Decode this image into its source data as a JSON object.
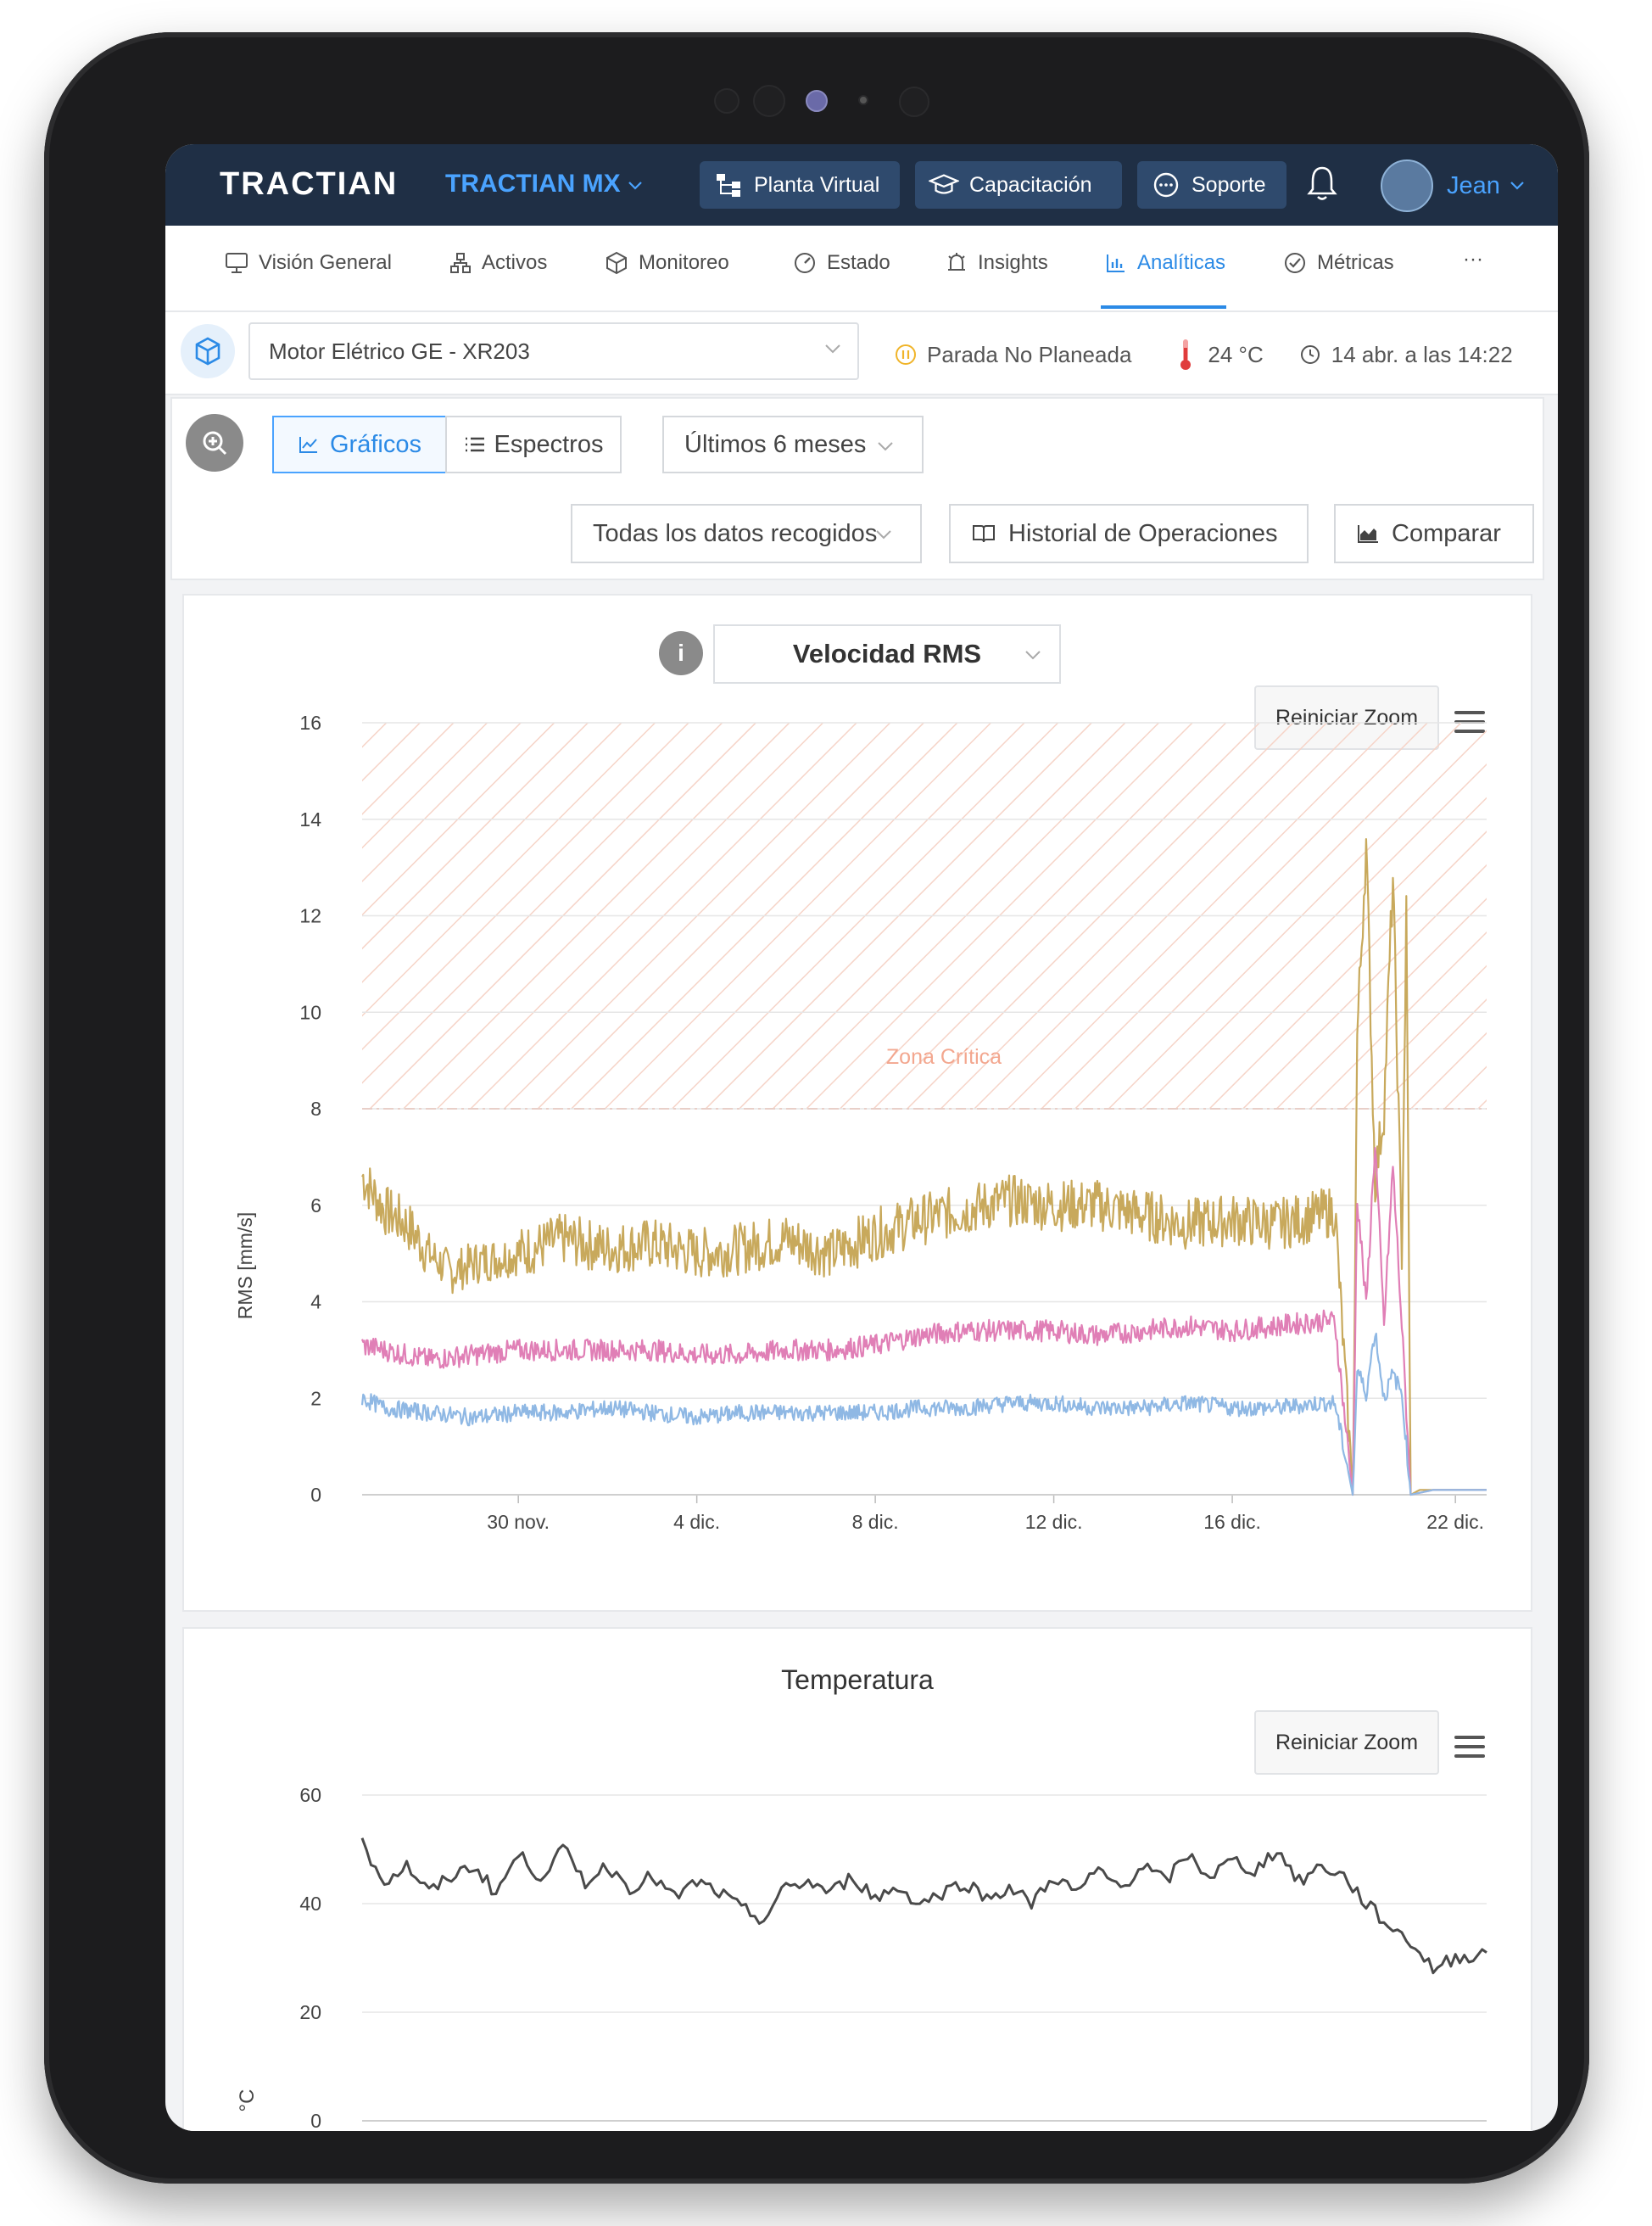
{
  "header": {
    "logo": "TRACTIAN",
    "company": "TRACTIAN MX",
    "buttons": [
      {
        "label": "Planta Virtual",
        "icon": "sitemap-icon"
      },
      {
        "label": "Capacitación",
        "icon": "graduation-cap-icon"
      },
      {
        "label": "Soporte",
        "icon": "chat-icon"
      }
    ],
    "user": "Jean"
  },
  "nav": {
    "items": [
      {
        "label": "Visión General",
        "icon": "monitor-icon"
      },
      {
        "label": "Activos",
        "icon": "hierarchy-icon"
      },
      {
        "label": "Monitoreo",
        "icon": "box-icon"
      },
      {
        "label": "Estado",
        "icon": "gauge-icon"
      },
      {
        "label": "Insights",
        "icon": "alarm-icon"
      },
      {
        "label": "Analíticas",
        "icon": "bar-chart-icon"
      },
      {
        "label": "Métricas",
        "icon": "check-circle-icon"
      },
      {
        "label": "···",
        "icon": "more-icon"
      }
    ],
    "active": "Analíticas"
  },
  "asset": {
    "selected": "Motor Elétrico GE - XR203",
    "status": "Parada No Planeada",
    "temperature": "24 °C",
    "last_update": "14 abr. a las 14:22"
  },
  "filters": {
    "view_tabs": [
      "Gráficos",
      "Espectros"
    ],
    "active_tab": "Gráficos",
    "period": "Últimos 6 meses",
    "data_scope": "Todas los datos recogidos",
    "history_button": "Historial de Operaciones",
    "compare_button": "Comparar"
  },
  "colors": {
    "accent": "#2b8ae6",
    "topbar": "#1f2f45",
    "critical": "#f08a6c",
    "series_1": "#c8a95c",
    "series_2": "#e07fb6",
    "series_3": "#8fb8e4",
    "temperature": "#4a4a4a"
  },
  "chart_rms": {
    "selector": "Velocidad RMS",
    "reset_zoom": "Reiniciar Zoom",
    "critical_label": "Zona Crítica"
  },
  "chart_temp": {
    "title": "Temperatura",
    "reset_zoom": "Reiniciar Zoom"
  },
  "chart_data": [
    {
      "type": "line",
      "ylabel": "RMS [mm/s]",
      "ylim": [
        0,
        16
      ],
      "yticks": [
        0,
        2,
        4,
        6,
        8,
        10,
        12,
        14,
        16
      ],
      "xlim": [
        -3.5,
        21.7
      ],
      "xticks": [
        {
          "x": 0,
          "label": "30 nov."
        },
        {
          "x": 4,
          "label": "4 dic."
        },
        {
          "x": 8,
          "label": "8 dic."
        },
        {
          "x": 12,
          "label": "12 dic."
        },
        {
          "x": 16,
          "label": "16 dic."
        },
        {
          "x": 21,
          "label": "22 dic."
        }
      ],
      "critical_threshold": 8,
      "grid": true,
      "series": [
        {
          "color": "#c8a95c",
          "x": [
            -3.5,
            -3.0,
            -2.5,
            -2.0,
            -1.5,
            -1.0,
            0,
            1,
            2,
            3,
            4,
            5,
            6,
            7,
            8,
            9,
            10,
            11,
            12,
            13,
            14,
            15,
            16,
            17,
            18,
            18.3,
            18.7,
            18.8,
            19.0,
            19.2,
            19.4,
            19.6,
            19.8,
            19.9,
            20.0,
            20.2,
            20.5,
            21.0,
            21.7
          ],
          "values": [
            6.6,
            5.9,
            5.6,
            5.0,
            4.6,
            4.8,
            5.0,
            5.3,
            5.1,
            5.2,
            5.0,
            5.1,
            5.3,
            5.0,
            5.4,
            5.7,
            5.9,
            6.1,
            6.0,
            6.0,
            5.8,
            5.6,
            5.7,
            5.6,
            5.8,
            5.9,
            0,
            9.5,
            13.5,
            6.5,
            8.0,
            12.8,
            5.0,
            12.0,
            0,
            0.1,
            0.1,
            0.1,
            0.1
          ]
        },
        {
          "color": "#e07fb6",
          "x": [
            -3.5,
            -3.0,
            -2.0,
            -1.0,
            0,
            1,
            2,
            3,
            4,
            5,
            6,
            7,
            8,
            9,
            10,
            11,
            12,
            13,
            14,
            15,
            16,
            17,
            18,
            18.3,
            18.7,
            18.8,
            19.0,
            19.2,
            19.4,
            19.6,
            19.8,
            20.0,
            20.5,
            21.7
          ],
          "values": [
            3.1,
            3.0,
            2.8,
            2.9,
            3.0,
            3.0,
            3.0,
            3.0,
            2.9,
            2.9,
            3.0,
            3.0,
            3.1,
            3.3,
            3.4,
            3.4,
            3.4,
            3.3,
            3.4,
            3.5,
            3.4,
            3.5,
            3.6,
            3.6,
            0,
            6.2,
            3.9,
            7.3,
            3.5,
            6.8,
            3.5,
            0,
            0.1,
            0.1
          ]
        },
        {
          "color": "#8fb8e4",
          "x": [
            -3.5,
            -3.0,
            -2.0,
            -1.0,
            0,
            1,
            2,
            3,
            4,
            5,
            6,
            7,
            8,
            9,
            10,
            11,
            12,
            13,
            14,
            15,
            16,
            17,
            18,
            18.3,
            18.7,
            18.8,
            19.0,
            19.2,
            19.4,
            19.6,
            19.8,
            20.0,
            20.5,
            21.7
          ],
          "values": [
            2.0,
            1.8,
            1.7,
            1.6,
            1.7,
            1.7,
            1.8,
            1.7,
            1.6,
            1.7,
            1.7,
            1.7,
            1.7,
            1.8,
            1.8,
            1.9,
            1.9,
            1.8,
            1.8,
            1.9,
            1.8,
            1.8,
            1.9,
            1.9,
            0,
            2.6,
            2.1,
            3.4,
            2.0,
            2.5,
            2.1,
            0,
            0.1,
            0.1
          ]
        }
      ]
    },
    {
      "type": "line",
      "title": "Temperatura",
      "ylabel": "°C",
      "ylim": [
        0,
        60
      ],
      "yticks": [
        0,
        20,
        40,
        60
      ],
      "xlim": [
        -3.5,
        21.7
      ],
      "grid": true,
      "series": [
        {
          "color": "#4a4a4a",
          "x": [
            -3.5,
            -3.0,
            -2.5,
            -2.0,
            -1.5,
            -1.0,
            -0.5,
            0,
            0.5,
            1,
            1.5,
            2,
            2.5,
            3,
            3.5,
            4,
            4.5,
            5,
            5.5,
            6,
            6.5,
            7,
            7.5,
            8,
            8.5,
            9,
            9.5,
            10,
            10.5,
            11,
            11.5,
            12,
            12.5,
            13,
            13.5,
            14,
            14.5,
            15,
            15.5,
            16,
            16.5,
            17,
            17.5,
            18,
            18.5,
            19,
            19.5,
            20,
            20.5,
            21,
            21.7
          ],
          "values": [
            51,
            44,
            47,
            42,
            45,
            47,
            42,
            49,
            45,
            50,
            44,
            47,
            43,
            45,
            41,
            44,
            42,
            39,
            37,
            43,
            44,
            42,
            45,
            41,
            43,
            40,
            42,
            44,
            41,
            43,
            40,
            45,
            42,
            46,
            43,
            47,
            44,
            49,
            45,
            48,
            46,
            50,
            44,
            47,
            45,
            40,
            36,
            33,
            28,
            30,
            31
          ]
        }
      ]
    }
  ]
}
